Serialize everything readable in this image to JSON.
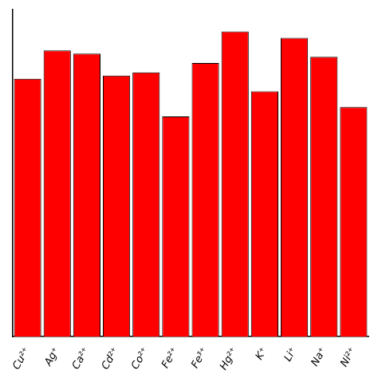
{
  "chart_data": {
    "type": "bar",
    "categories": [
      "Cu²⁺",
      "Ag⁺",
      "Ca²⁺",
      "Cd²⁺",
      "Co²⁺",
      "Fe²⁺",
      "Fe³⁺",
      "Hg²⁺",
      "K⁺",
      "Li⁺",
      "Na⁺",
      "Ni²⁺"
    ],
    "values": [
      0.82,
      0.91,
      0.9,
      0.83,
      0.84,
      0.7,
      0.87,
      0.97,
      0.78,
      0.95,
      0.89,
      0.73
    ],
    "color": "#FF0000",
    "ylim": [
      0,
      1.04
    ],
    "yticks": [],
    "grid": false,
    "tick_labels": "x"
  }
}
